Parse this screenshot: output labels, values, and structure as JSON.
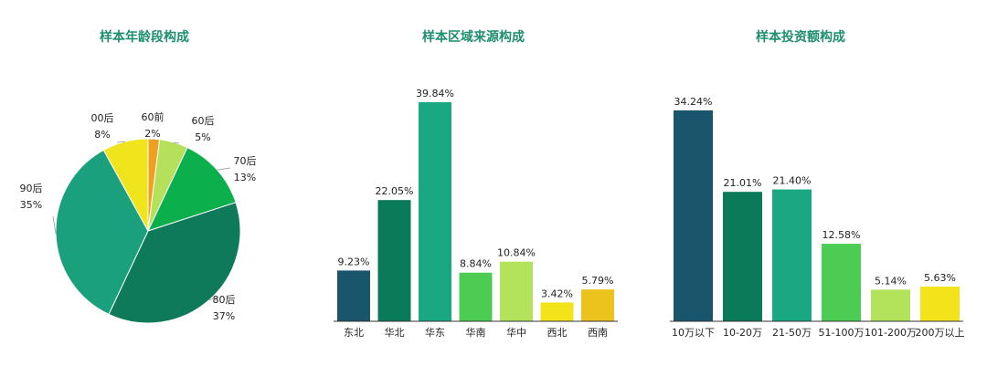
{
  "colors": {
    "title": "#1e8e6e",
    "axis": "#333333",
    "label": "#222222"
  },
  "chart_data": [
    {
      "type": "pie",
      "title": "样本年龄段构成",
      "slices": [
        {
          "name": "60前",
          "label": "60前",
          "value": 2,
          "pct_label": "2%",
          "color": "#f0a020"
        },
        {
          "name": "60后",
          "label": "60后",
          "value": 5,
          "pct_label": "5%",
          "color": "#b5e05a"
        },
        {
          "name": "70后",
          "label": "70后",
          "value": 13,
          "pct_label": "13%",
          "color": "#0bb04c"
        },
        {
          "name": "80后",
          "label": "80后",
          "value": 37,
          "pct_label": "37%",
          "color": "#0f7a5a"
        },
        {
          "name": "90后",
          "label": "90后",
          "value": 35,
          "pct_label": "35%",
          "color": "#1aa07c"
        },
        {
          "name": "00后",
          "label": "00后",
          "value": 8,
          "pct_label": "8%",
          "color": "#f0e41c"
        }
      ],
      "legend": "none"
    },
    {
      "type": "bar",
      "title": "样本区域来源构成",
      "categories": [
        "东北",
        "华北",
        "华东",
        "华南",
        "华中",
        "西北",
        "西南"
      ],
      "values": [
        9.23,
        22.05,
        39.84,
        8.84,
        10.84,
        3.42,
        5.79
      ],
      "value_labels": [
        "9.23%",
        "22.05%",
        "39.84%",
        "8.84%",
        "10.84%",
        "3.42%",
        "5.79%"
      ],
      "colors": [
        "#19566b",
        "#0a7a58",
        "#1aa882",
        "#4ccc52",
        "#b2e35a",
        "#f2e31a",
        "#ecc21c"
      ],
      "ylim": [
        0,
        42
      ],
      "grid": false
    },
    {
      "type": "bar",
      "title": "样本投资额构成",
      "categories": [
        "10万以下",
        "10-20万",
        "21-50万",
        "51-100万",
        "101-200万",
        "200万以上"
      ],
      "values": [
        34.24,
        21.01,
        21.4,
        12.58,
        5.14,
        5.63
      ],
      "value_labels": [
        "34.24%",
        "21.01%",
        "21.40%",
        "12.58%",
        "5.14%",
        "5.63%"
      ],
      "colors": [
        "#19566b",
        "#0a7a58",
        "#1aa882",
        "#4ccc52",
        "#b2e35a",
        "#f2e31a"
      ],
      "ylim": [
        0,
        36
      ],
      "grid": false
    }
  ]
}
